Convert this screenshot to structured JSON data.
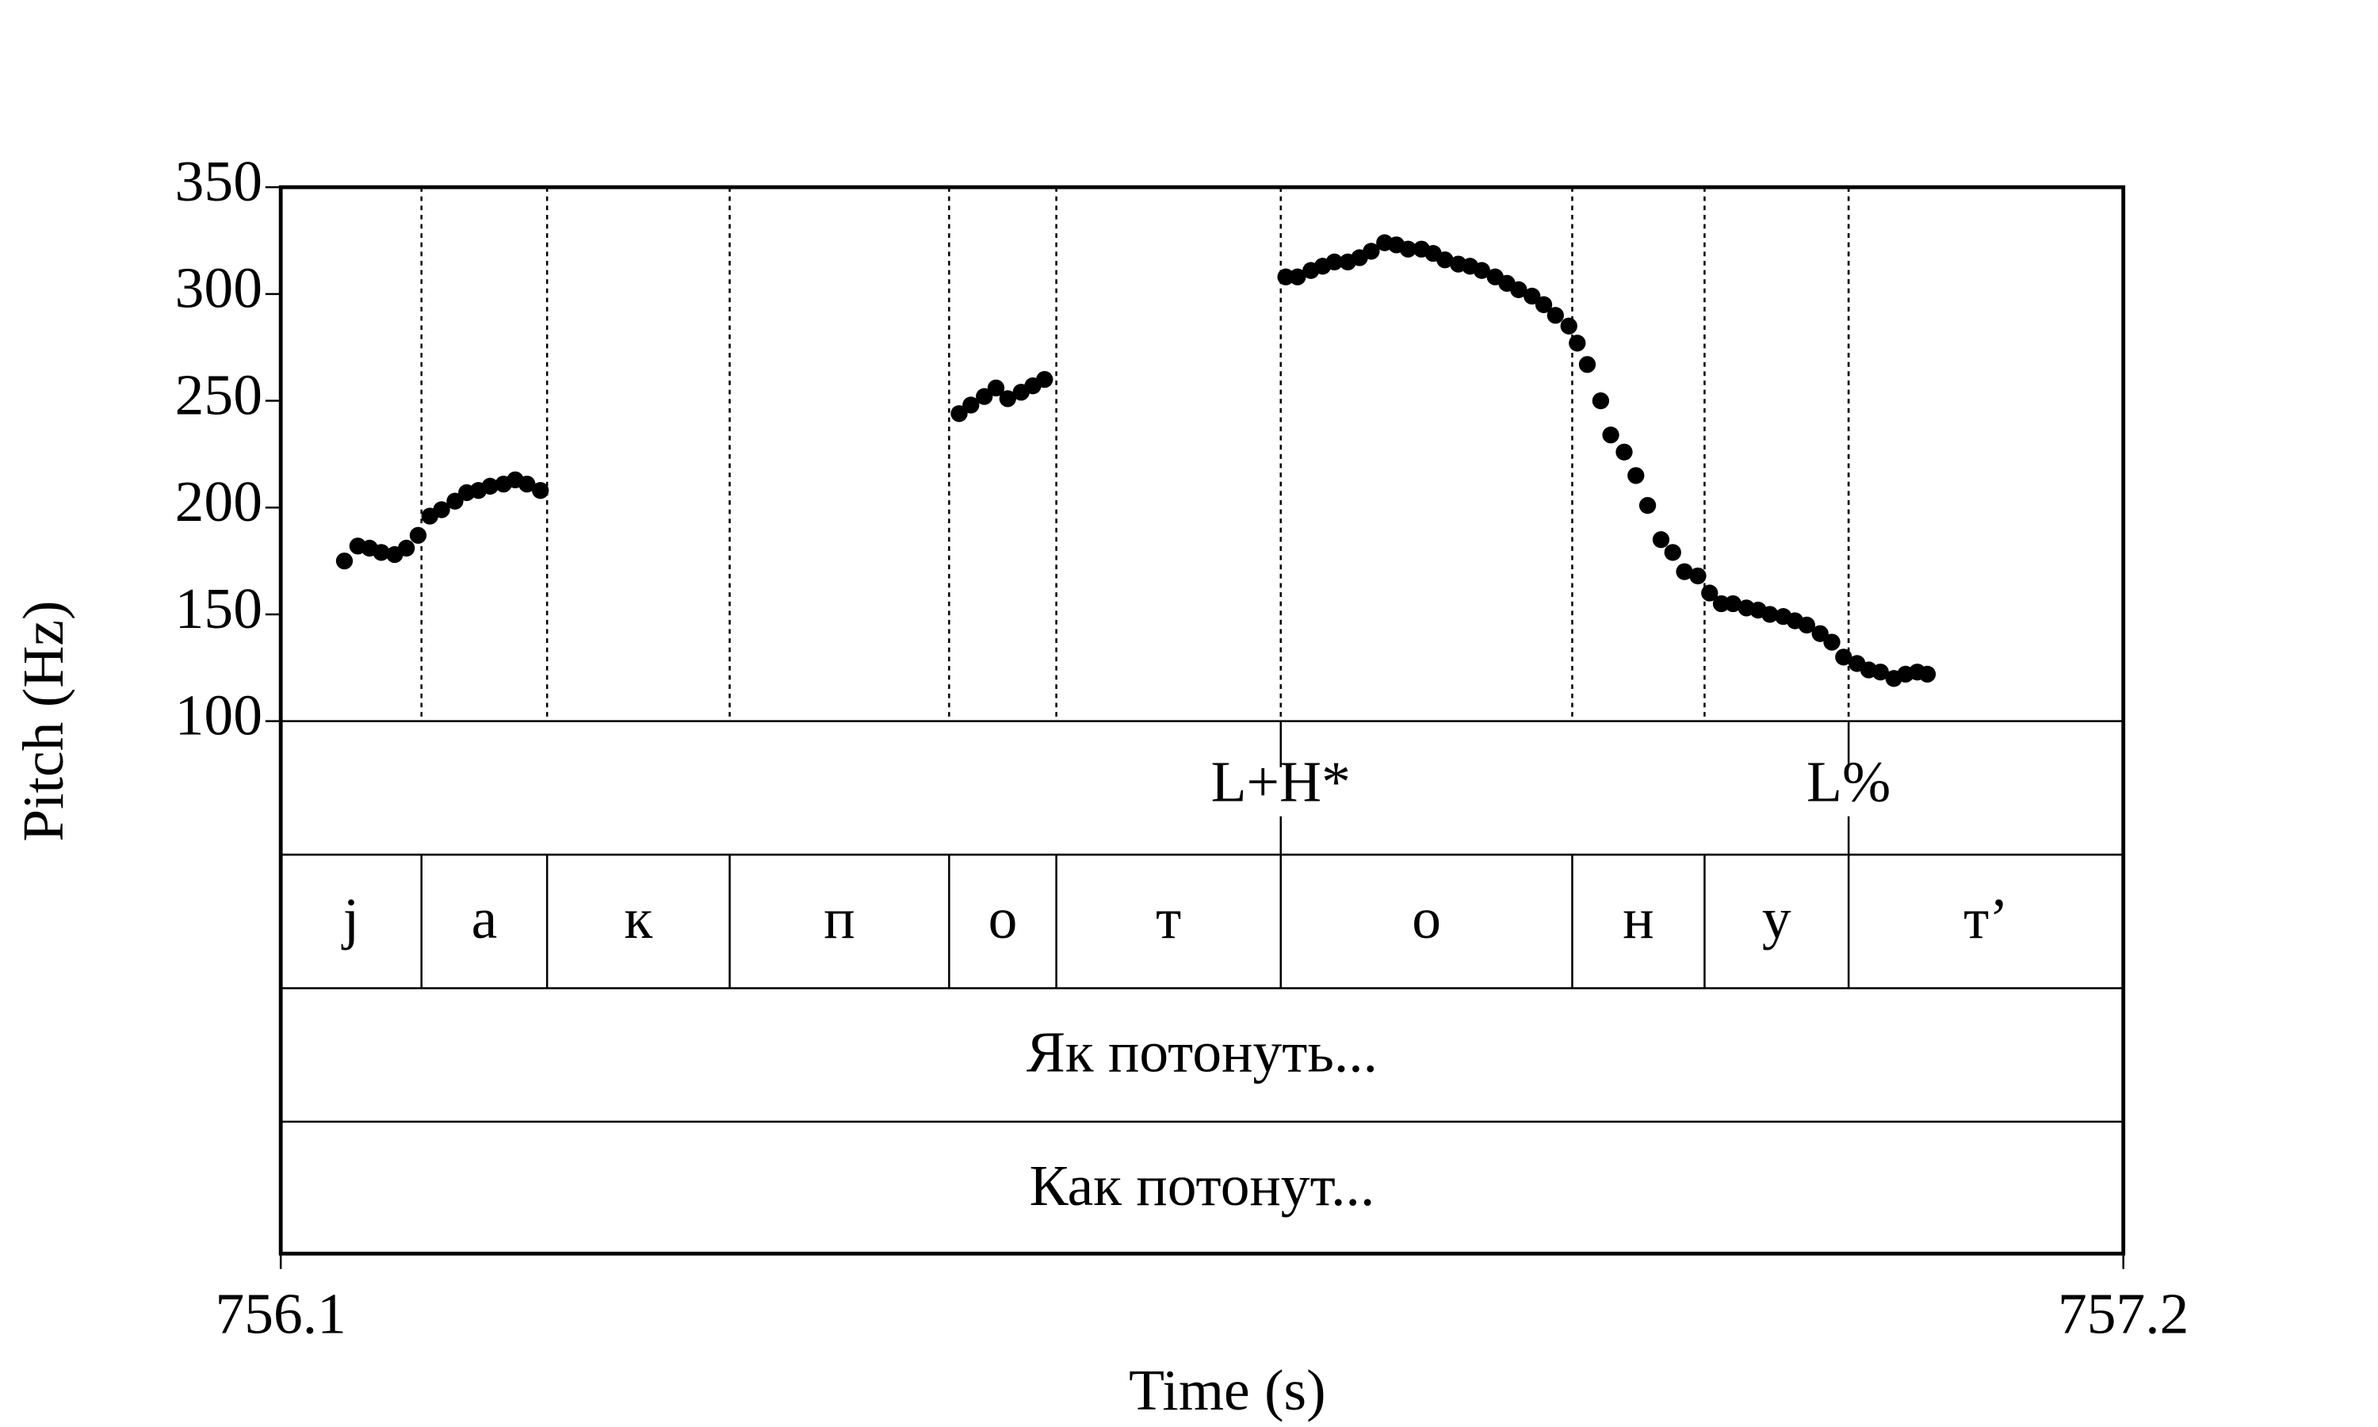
{
  "chart_data": {
    "type": "pitch",
    "ylabel": "Pitch (Hz)",
    "xlabel": "Time (s)",
    "xlim": [
      756.1,
      757.2
    ],
    "xticks": [
      756.1,
      757.2
    ],
    "ylim": [
      100,
      350
    ],
    "yticks": [
      100,
      150,
      200,
      250,
      300,
      350
    ],
    "color": "#000000",
    "x": [
      756.138,
      756.146,
      756.153,
      756.16,
      756.168,
      756.175,
      756.182,
      756.189,
      756.196,
      756.204,
      756.211,
      756.218,
      756.225,
      756.233,
      756.24,
      756.247,
      756.255,
      756.505,
      756.512,
      756.52,
      756.527,
      756.534,
      756.542,
      756.549,
      756.556,
      756.7,
      756.707,
      756.715,
      756.722,
      756.729,
      756.737,
      756.744,
      756.751,
      756.759,
      756.766,
      756.773,
      756.781,
      756.788,
      756.795,
      756.803,
      756.81,
      756.817,
      756.825,
      756.832,
      756.839,
      756.847,
      756.854,
      756.861,
      756.869,
      756.874,
      756.88,
      756.888,
      756.894,
      756.902,
      756.909,
      756.916,
      756.924,
      756.931,
      756.938,
      756.946,
      756.953,
      756.96,
      756.967,
      756.975,
      756.982,
      756.989,
      756.997,
      757.004,
      757.011,
      757.019,
      757.026,
      757.033,
      757.041,
      757.048,
      757.055,
      757.063,
      757.07,
      757.077,
      757.083
    ],
    "values": [
      175,
      182,
      181,
      179,
      178,
      181,
      187,
      196,
      199,
      203,
      207,
      208,
      210,
      211,
      213,
      211,
      208,
      244,
      248,
      252,
      256,
      251,
      254,
      257,
      260,
      308,
      308,
      311,
      313,
      315,
      315,
      317,
      320,
      324,
      323,
      321,
      321,
      319,
      316,
      314,
      313,
      311,
      308,
      305,
      302,
      299,
      295,
      290,
      285,
      277,
      267,
      250,
      234,
      226,
      215,
      201,
      185,
      179,
      170,
      168,
      160,
      155,
      155,
      153,
      152,
      150,
      149,
      147,
      145,
      141,
      137,
      130,
      127,
      124,
      123,
      120,
      122,
      123,
      122
    ],
    "tones": [
      {
        "label": "L+H*",
        "time": 756.697
      },
      {
        "label": "L%",
        "time": 757.036
      }
    ],
    "phones": {
      "labels": [
        "j",
        "а",
        "к",
        "п",
        "о",
        "т",
        "о",
        "н",
        "у",
        "т’"
      ],
      "boundaries": [
        756.184,
        756.259,
        756.368,
        756.499,
        756.563,
        756.697,
        756.871,
        756.95,
        757.036
      ]
    },
    "words": [
      "Як потонуть...",
      "Как потонут..."
    ]
  }
}
